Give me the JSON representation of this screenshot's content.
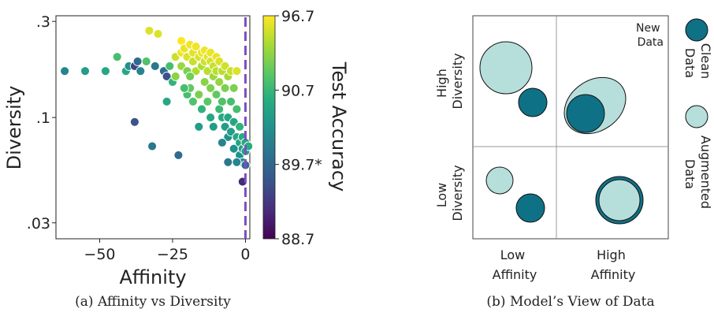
{
  "chart_data": [
    {
      "type": "scatter",
      "caption": "(a) Affinity vs Diversity",
      "xlabel": "Affinity",
      "ylabel": "Diversity",
      "x_ticks": [
        "−50",
        "−25",
        "0"
      ],
      "x_tick_values": [
        -50,
        -25,
        0
      ],
      "y_ticks": [
        ".3",
        ".1",
        ".03"
      ],
      "y_tick_values": [
        0.3,
        0.1,
        0.03
      ],
      "y_scale": "log",
      "xlim": [
        -65,
        1.5
      ],
      "ylim": [
        0.025,
        0.32
      ],
      "colorbar": {
        "label": "Test Accuracy",
        "ticks": [
          "96.7",
          "90.7",
          "89.7*",
          "88.7"
        ],
        "colormap": "viridis"
      },
      "reference_line": {
        "x": 0,
        "color": "#7b4fc2",
        "style": "dashed"
      },
      "points": [
        [
          -62,
          0.17,
          0.45
        ],
        [
          -55,
          0.17,
          0.55
        ],
        [
          -48,
          0.17,
          0.6
        ],
        [
          -44,
          0.2,
          0.7
        ],
        [
          -41,
          0.17,
          0.6
        ],
        [
          -40,
          0.18,
          0.5
        ],
        [
          -38,
          0.18,
          0.2
        ],
        [
          -37,
          0.19,
          0.35
        ],
        [
          -36,
          0.17,
          0.45
        ],
        [
          -34,
          0.19,
          0.72
        ],
        [
          -33,
          0.27,
          0.95
        ],
        [
          -31,
          0.18,
          0.4
        ],
        [
          -30,
          0.26,
          0.95
        ],
        [
          -28,
          0.17,
          0.35
        ],
        [
          -27,
          0.16,
          0.25
        ],
        [
          -26,
          0.18,
          0.7
        ],
        [
          -38,
          0.095,
          0.25
        ],
        [
          -32,
          0.072,
          0.4
        ],
        [
          -27,
          0.12,
          0.6
        ],
        [
          -25,
          0.15,
          0.65
        ],
        [
          -24,
          0.16,
          0.82
        ],
        [
          -24,
          0.2,
          0.92
        ],
        [
          -23,
          0.065,
          0.35
        ],
        [
          -22,
          0.18,
          0.85
        ],
        [
          -22,
          0.24,
          1.0
        ],
        [
          -22,
          0.21,
          0.98
        ],
        [
          -21,
          0.22,
          0.97
        ],
        [
          -20,
          0.17,
          0.8
        ],
        [
          -20,
          0.13,
          0.7
        ],
        [
          -20,
          0.2,
          0.95
        ],
        [
          -19,
          0.23,
          0.98
        ],
        [
          -19,
          0.14,
          0.75
        ],
        [
          -18,
          0.19,
          0.92
        ],
        [
          -18,
          0.12,
          0.72
        ],
        [
          -18,
          0.21,
          0.96
        ],
        [
          -17,
          0.17,
          0.88
        ],
        [
          -17,
          0.225,
          0.98
        ],
        [
          -16,
          0.2,
          0.95
        ],
        [
          -16,
          0.13,
          0.8
        ],
        [
          -15,
          0.18,
          0.88
        ],
        [
          -15,
          0.21,
          0.97
        ],
        [
          -15,
          0.11,
          0.65
        ],
        [
          -14,
          0.15,
          0.82
        ],
        [
          -14,
          0.19,
          0.93
        ],
        [
          -14,
          0.215,
          0.98
        ],
        [
          -13,
          0.12,
          0.74
        ],
        [
          -13,
          0.17,
          0.9
        ],
        [
          -13,
          0.2,
          0.96
        ],
        [
          -12,
          0.1,
          0.6
        ],
        [
          -12,
          0.14,
          0.8
        ],
        [
          -12,
          0.19,
          0.94
        ],
        [
          -12,
          0.21,
          0.97
        ],
        [
          -11,
          0.16,
          0.85
        ],
        [
          -11,
          0.18,
          0.92
        ],
        [
          -11,
          0.09,
          0.55
        ],
        [
          -10,
          0.13,
          0.75
        ],
        [
          -10,
          0.2,
          0.97
        ],
        [
          -10,
          0.17,
          0.9
        ],
        [
          -9,
          0.11,
          0.68
        ],
        [
          -9,
          0.15,
          0.84
        ],
        [
          -9,
          0.19,
          0.95
        ],
        [
          -8,
          0.1,
          0.62
        ],
        [
          -8,
          0.17,
          0.9
        ],
        [
          -8,
          0.12,
          0.72
        ],
        [
          -7,
          0.18,
          0.93
        ],
        [
          -7,
          0.09,
          0.55
        ],
        [
          -7,
          0.14,
          0.8
        ],
        [
          -6,
          0.16,
          0.87
        ],
        [
          -6,
          0.1,
          0.6
        ],
        [
          -6,
          0.08,
          0.5
        ],
        [
          -5,
          0.17,
          0.92
        ],
        [
          -5,
          0.12,
          0.7
        ],
        [
          -5,
          0.085,
          0.55
        ],
        [
          -4,
          0.14,
          0.8
        ],
        [
          -4,
          0.095,
          0.6
        ],
        [
          -4,
          0.07,
          0.5
        ],
        [
          -3,
          0.17,
          0.95
        ],
        [
          -3,
          0.11,
          0.7
        ],
        [
          -3,
          0.08,
          0.6
        ],
        [
          -2,
          0.09,
          0.65
        ],
        [
          -2,
          0.075,
          0.58
        ],
        [
          -2,
          0.065,
          0.5
        ],
        [
          -1,
          0.08,
          0.62
        ],
        [
          -1,
          0.07,
          0.55
        ],
        [
          -1,
          0.06,
          0.5
        ],
        [
          0,
          0.075,
          0.6
        ],
        [
          0,
          0.068,
          0.56
        ],
        [
          0,
          0.058,
          0.35
        ],
        [
          1,
          0.072,
          0.62
        ],
        [
          -3,
          0.06,
          0.45
        ],
        [
          -1,
          0.048,
          0.12
        ],
        [
          -6,
          0.06,
          0.4
        ],
        [
          -8,
          0.075,
          0.45
        ],
        [
          -19,
          0.16,
          0.78
        ],
        [
          -21,
          0.14,
          0.7
        ],
        [
          -16,
          0.09,
          0.55
        ]
      ]
    },
    {
      "type": "diagram",
      "caption": "(b) Model’s View of Data",
      "row_labels": [
        "High Diversity",
        "Low Diversity"
      ],
      "col_labels": [
        "Low Affinity",
        "High Affinity"
      ],
      "corner_note": "New Data",
      "legend": [
        {
          "label": "Clean Data",
          "color": "#0f7186"
        },
        {
          "label": "Augmented Data",
          "color": "#b6dfdc"
        }
      ]
    }
  ]
}
